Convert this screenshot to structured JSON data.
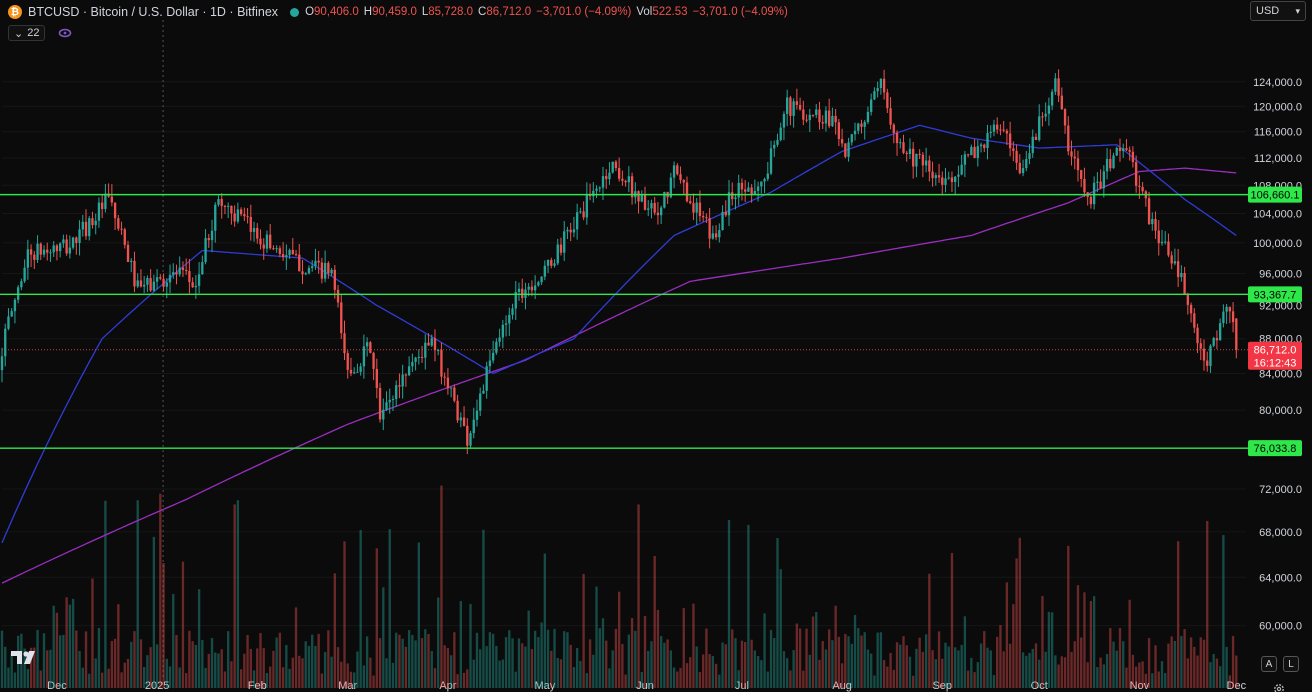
{
  "header": {
    "symbol_badge": "₿",
    "title": "BTCUSD · Bitcoin / U.S. Dollar · 1D · Bitfinex",
    "ohlc": [
      {
        "k": "O",
        "v": "90,406.0"
      },
      {
        "k": "H",
        "v": "90,459.0"
      },
      {
        "k": "L",
        "v": "85,728.0"
      },
      {
        "k": "C",
        "v": "86,712.0"
      },
      {
        "k": "",
        "v": "−3,701.0 (−4.09%)"
      },
      {
        "k": "Vol",
        "v": "522.53"
      },
      {
        "k": "",
        "v": "−3,701.0 (−4.09%)"
      }
    ]
  },
  "indicators_chip": "22",
  "currency_button": "USD",
  "scale_buttons": {
    "auto": "A",
    "log": "L"
  },
  "colors": {
    "up": "#26a69a",
    "down": "#ef5350",
    "level": "#2ee84a",
    "ma_fast": "#2f3cd8",
    "ma_slow": "#9a2ec0",
    "crosshair": "#555555"
  },
  "chart_data": {
    "type": "candlestick",
    "y_scale": "log",
    "ylim": [
      58000,
      128000
    ],
    "price_ticks": [
      "124,000.0",
      "120,000.0",
      "116,000.0",
      "112,000.0",
      "108,000.0",
      "104,000.0",
      "100,000.0",
      "96,000.0",
      "92,000.0",
      "88,000.0",
      "84,000.0",
      "80,000.0",
      "76,000.0",
      "72,000.0",
      "68,000.0",
      "64,000.0",
      "60,000.0"
    ],
    "price_tick_values": [
      124000,
      120000,
      116000,
      112000,
      108000,
      104000,
      100000,
      96000,
      92000,
      88000,
      84000,
      80000,
      76000,
      72000,
      68000,
      64000,
      60000
    ],
    "x_start": "2024-11-14",
    "x_end": "2025-12-04",
    "time_ticks": [
      {
        "label": "Dec",
        "date": "2024-12-01"
      },
      {
        "label": "2025",
        "date": "2025-01-01"
      },
      {
        "label": "Feb",
        "date": "2025-02-01"
      },
      {
        "label": "Mar",
        "date": "2025-03-01"
      },
      {
        "label": "Apr",
        "date": "2025-04-01"
      },
      {
        "label": "May",
        "date": "2025-05-01"
      },
      {
        "label": "Jun",
        "date": "2025-06-01"
      },
      {
        "label": "Jul",
        "date": "2025-07-01"
      },
      {
        "label": "Aug",
        "date": "2025-08-01"
      },
      {
        "label": "Sep",
        "date": "2025-09-01"
      },
      {
        "label": "Oct",
        "date": "2025-10-01"
      },
      {
        "label": "Nov",
        "date": "2025-11-01"
      },
      {
        "label": "Dec",
        "date": "2025-12-01"
      }
    ],
    "close_keypoints": [
      [
        "2024-11-14",
        87000
      ],
      [
        "2024-11-22",
        98500
      ],
      [
        "2024-12-05",
        99500
      ],
      [
        "2024-12-17",
        106000
      ],
      [
        "2024-12-26",
        94000
      ],
      [
        "2025-01-07",
        96000
      ],
      [
        "2025-01-13",
        94500
      ],
      [
        "2025-01-20",
        106000
      ],
      [
        "2025-02-01",
        101000
      ],
      [
        "2025-02-15",
        97000
      ],
      [
        "2025-02-24",
        96000
      ],
      [
        "2025-03-01",
        84000
      ],
      [
        "2025-03-08",
        87000
      ],
      [
        "2025-03-11",
        79000
      ],
      [
        "2025-03-20",
        85000
      ],
      [
        "2025-03-27",
        87500
      ],
      [
        "2025-04-07",
        77000
      ],
      [
        "2025-04-14",
        85000
      ],
      [
        "2025-04-22",
        93500
      ],
      [
        "2025-05-01",
        96000
      ],
      [
        "2025-05-12",
        104000
      ],
      [
        "2025-05-22",
        111000
      ],
      [
        "2025-06-05",
        103000
      ],
      [
        "2025-06-10",
        110000
      ],
      [
        "2025-06-22",
        100500
      ],
      [
        "2025-06-28",
        107000
      ],
      [
        "2025-07-08",
        108500
      ],
      [
        "2025-07-14",
        120000
      ],
      [
        "2025-07-30",
        118000
      ],
      [
        "2025-08-02",
        112500
      ],
      [
        "2025-08-13",
        123000
      ],
      [
        "2025-08-19",
        114000
      ],
      [
        "2025-09-01",
        108000
      ],
      [
        "2025-09-08",
        111500
      ],
      [
        "2025-09-19",
        117000
      ],
      [
        "2025-09-25",
        109000
      ],
      [
        "2025-10-06",
        124500
      ],
      [
        "2025-10-10",
        113000
      ],
      [
        "2025-10-17",
        106500
      ],
      [
        "2025-10-27",
        114500
      ],
      [
        "2025-11-04",
        103500
      ],
      [
        "2025-11-14",
        95000
      ],
      [
        "2025-11-21",
        84500
      ],
      [
        "2025-11-27",
        91000
      ],
      [
        "2025-11-30",
        90400
      ],
      [
        "2025-12-01",
        86712
      ]
    ],
    "ma_fast_keypoints": [
      [
        "2024-11-14",
        67000
      ],
      [
        "2024-12-15",
        88000
      ],
      [
        "2025-01-15",
        99000
      ],
      [
        "2025-02-15",
        98000
      ],
      [
        "2025-03-10",
        92000
      ],
      [
        "2025-04-15",
        84000
      ],
      [
        "2025-05-10",
        88000
      ],
      [
        "2025-06-10",
        101000
      ],
      [
        "2025-07-10",
        107000
      ],
      [
        "2025-08-01",
        113000
      ],
      [
        "2025-08-25",
        117000
      ],
      [
        "2025-09-10",
        115000
      ],
      [
        "2025-10-01",
        113500
      ],
      [
        "2025-10-25",
        114000
      ],
      [
        "2025-11-15",
        106000
      ],
      [
        "2025-12-01",
        101000
      ]
    ],
    "ma_slow_keypoints": [
      [
        "2024-11-14",
        63500
      ],
      [
        "2025-01-10",
        71000
      ],
      [
        "2025-03-01",
        78500
      ],
      [
        "2025-04-25",
        85500
      ],
      [
        "2025-06-15",
        95000
      ],
      [
        "2025-08-01",
        98000
      ],
      [
        "2025-09-10",
        101000
      ],
      [
        "2025-10-10",
        105500
      ],
      [
        "2025-11-01",
        110000
      ],
      [
        "2025-11-15",
        110500
      ],
      [
        "2025-12-01",
        109800
      ]
    ],
    "levels": [
      {
        "value": 106660.1,
        "label": "106,660.1"
      },
      {
        "value": 93367.7,
        "label": "93,367.7"
      },
      {
        "value": 76033.8,
        "label": "76,033.8"
      }
    ],
    "last_price": {
      "value": 86712.0,
      "label": "86,712.0",
      "countdown": "16:12:43"
    },
    "crosshair_date": "2025-01-01"
  }
}
